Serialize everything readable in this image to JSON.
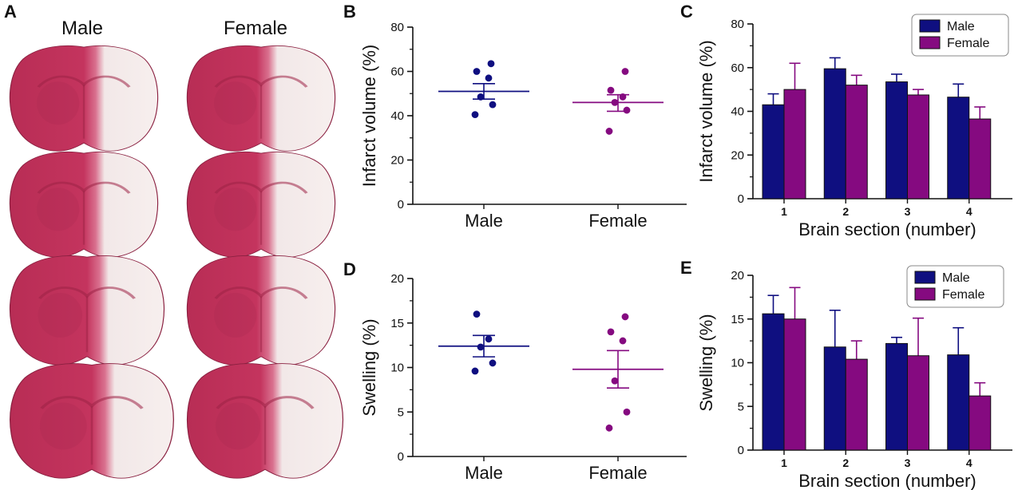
{
  "panels": {
    "A": {
      "letter": "A",
      "columns": [
        "Male",
        "Female"
      ],
      "images": [
        {
          "name": "male-section-1"
        },
        {
          "name": "female-section-1"
        },
        {
          "name": "male-section-2"
        },
        {
          "name": "female-section-2"
        },
        {
          "name": "male-section-3"
        },
        {
          "name": "female-section-3"
        },
        {
          "name": "male-section-4"
        },
        {
          "name": "female-section-4"
        }
      ]
    },
    "B": {
      "letter": "B"
    },
    "C": {
      "letter": "C"
    },
    "D": {
      "letter": "D"
    },
    "E": {
      "letter": "E"
    }
  },
  "colors": {
    "male": "#0f0f80",
    "female": "#850a80",
    "tissue_red": "#c4345e",
    "tissue_pale": "#f2e8e8"
  },
  "chart_data": [
    {
      "id": "B",
      "type": "scatter",
      "ylabel": "Infarct volume (%)",
      "xlabel": "",
      "categories": [
        "Male",
        "Female"
      ],
      "ylim": [
        0,
        80
      ],
      "yticks": [
        0,
        20,
        40,
        60,
        80
      ],
      "series": [
        {
          "category": "Male",
          "points": [
            40.5,
            45,
            48.5,
            57,
            60,
            63.5
          ],
          "mean": 51,
          "sem_low": 47.5,
          "sem_high": 54.5
        },
        {
          "category": "Female",
          "points": [
            33,
            42.5,
            46,
            48.5,
            51.5,
            60
          ],
          "mean": 46,
          "sem_low": 42,
          "sem_high": 49.5
        }
      ]
    },
    {
      "id": "C",
      "type": "bar",
      "ylabel": "Infarct volume (%)",
      "xlabel": "Brain section (number)",
      "categories": [
        "1",
        "2",
        "3",
        "4"
      ],
      "ylim": [
        0,
        80
      ],
      "yticks": [
        0,
        20,
        40,
        60,
        80
      ],
      "legend": "top-right",
      "series": [
        {
          "name": "Male",
          "values": [
            43,
            59.5,
            53.5,
            46.5
          ],
          "errors": [
            5,
            5,
            3.5,
            6
          ]
        },
        {
          "name": "Female",
          "values": [
            50,
            52,
            47.5,
            36.5
          ],
          "errors": [
            12,
            4.5,
            2.5,
            5.5
          ]
        }
      ]
    },
    {
      "id": "D",
      "type": "scatter",
      "ylabel": "Swelling (%)",
      "xlabel": "",
      "categories": [
        "Male",
        "Female"
      ],
      "ylim": [
        0,
        20
      ],
      "yticks": [
        0,
        5,
        10,
        15,
        20
      ],
      "series": [
        {
          "category": "Male",
          "points": [
            9.6,
            10.5,
            12.3,
            13.2,
            16
          ],
          "mean": 12.4,
          "sem_low": 11.2,
          "sem_high": 13.6
        },
        {
          "category": "Female",
          "points": [
            3.2,
            5,
            8.5,
            13,
            14,
            15.7
          ],
          "mean": 9.8,
          "sem_low": 7.7,
          "sem_high": 11.9
        }
      ]
    },
    {
      "id": "E",
      "type": "bar",
      "ylabel": "Swelling (%)",
      "xlabel": "Brain section (number)",
      "categories": [
        "1",
        "2",
        "3",
        "4"
      ],
      "ylim": [
        0,
        20
      ],
      "yticks": [
        0,
        5,
        10,
        15,
        20
      ],
      "legend": "top-right",
      "series": [
        {
          "name": "Male",
          "values": [
            15.6,
            11.8,
            12.2,
            10.9
          ],
          "errors": [
            2.1,
            4.2,
            0.7,
            3.1
          ]
        },
        {
          "name": "Female",
          "values": [
            15,
            10.4,
            10.8,
            6.2
          ],
          "errors": [
            3.6,
            2.1,
            4.3,
            1.5
          ]
        }
      ]
    }
  ]
}
